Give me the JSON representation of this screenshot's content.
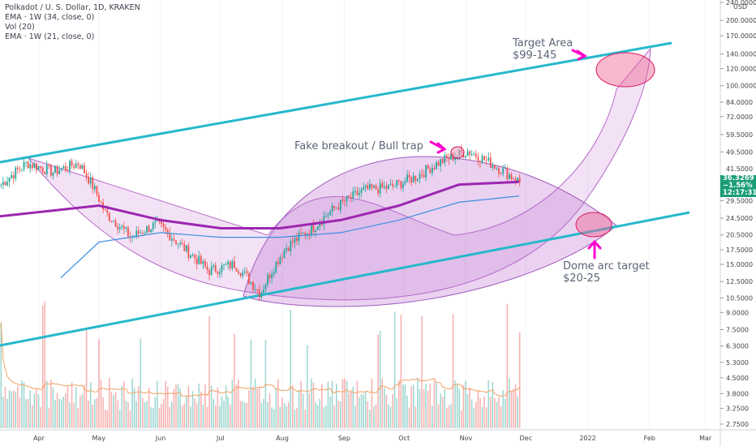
{
  "header": {
    "symbol_line": "Polkadot / U. S. Dollar, 1D, KRAKEN",
    "indicators": [
      "EMA · 1W (34, close, 0)",
      "Vol (20)",
      "EMA · 1W (21, close, 0)"
    ]
  },
  "price_axis": {
    "currency": "USD",
    "ticks": [
      "240.0000",
      "200.0000",
      "170.0000",
      "140.0000",
      "120.0000",
      "100.0000",
      "84.0000",
      "72.0000",
      "59.5000",
      "49.5000",
      "41.5000",
      "34.5000",
      "29.5000",
      "24.5000",
      "20.5000",
      "17.5000",
      "15.0000",
      "12.5000",
      "10.5000",
      "9.0000",
      "7.5000",
      "6.3000",
      "5.3000",
      "4.5000",
      "3.8000",
      "3.2500",
      "2.7500"
    ],
    "last_price": "36.3269",
    "change": "−1.56%",
    "countdown": "12:17:31"
  },
  "time_axis": {
    "labels": [
      "Apr",
      "May",
      "Jun",
      "Jul",
      "Aug",
      "Sep",
      "Oct",
      "Nov",
      "Dec",
      "2022",
      "Feb",
      "Mar"
    ]
  },
  "annotations": {
    "target_area_title": "Target Area",
    "target_area_range": "$99-145",
    "fake_breakout": "Fake breakout / Bull trap",
    "dome_title": "Dome arc target",
    "dome_range": "$20-25"
  },
  "colors": {
    "channel": "#26b8cc",
    "ema34": "#9c27b0",
    "ema21": "#3d8fe0",
    "up": "#26a69a",
    "down": "#ef5350",
    "arc_fill": "#c77ad6",
    "arrow": "#ff00cc",
    "price_badge": "#1b9e77"
  },
  "chart_data": {
    "type": "candlestick",
    "x_label": "",
    "y_label": "USD",
    "y_scale": "log",
    "series": [
      {
        "name": "EMA · 1W (34, close, 0)",
        "points": [
          [
            "Apr",
            25
          ],
          [
            "May",
            28
          ],
          [
            "Jun",
            24
          ],
          [
            "Jul",
            22
          ],
          [
            "Aug",
            22
          ],
          [
            "Sep",
            24
          ],
          [
            "Oct",
            28
          ],
          [
            "Nov",
            35
          ],
          [
            "Dec",
            36
          ]
        ]
      },
      {
        "name": "EMA · 1W (21, close, 0)",
        "points": [
          [
            "Apr",
            13
          ],
          [
            "May",
            19
          ],
          [
            "Jun",
            21
          ],
          [
            "Jul",
            20
          ],
          [
            "Aug",
            20
          ],
          [
            "Sep",
            21
          ],
          [
            "Oct",
            24
          ],
          [
            "Nov",
            29
          ],
          [
            "Dec",
            31
          ]
        ]
      }
    ],
    "candles_approx": [
      [
        "Apr",
        35
      ],
      [
        "Apr",
        44
      ],
      [
        "May",
        40
      ],
      [
        "May",
        44
      ],
      [
        "May",
        26
      ],
      [
        "Jun",
        20
      ],
      [
        "Jun",
        23
      ],
      [
        "Jun",
        18
      ],
      [
        "Jul",
        14
      ],
      [
        "Jul",
        15
      ],
      [
        "Jul",
        11
      ],
      [
        "Aug",
        18
      ],
      [
        "Aug",
        22
      ],
      [
        "Sep",
        28
      ],
      [
        "Sep",
        33
      ],
      [
        "Oct",
        34
      ],
      [
        "Oct",
        38
      ],
      [
        "Nov",
        45
      ],
      [
        "Nov",
        50
      ],
      [
        "Nov",
        43
      ],
      [
        "Dec",
        36
      ]
    ]
  }
}
